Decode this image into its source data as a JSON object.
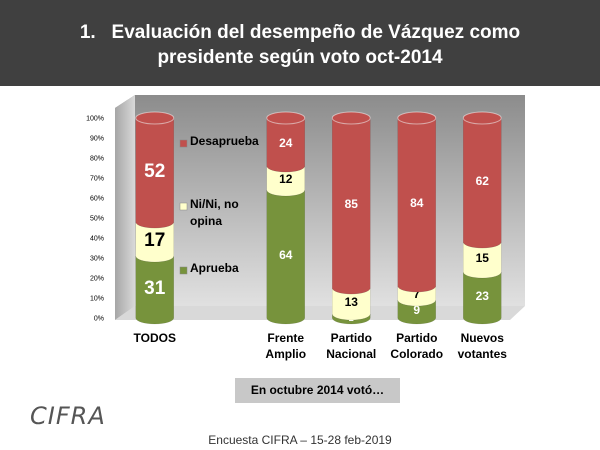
{
  "chart_data": {
    "type": "bar3d_stacked_percent",
    "title": "1.   Evaluación del desempeño de Vázquez como presidente según voto oct-2014",
    "categories": [
      "TODOS",
      null,
      "Frente Amplio",
      "Partido Nacional",
      "Partido Colorado",
      "Nuevos votantes"
    ],
    "series": [
      {
        "name": "Aprueba",
        "color": "#77933c",
        "values": [
          31,
          null,
          64,
          2,
          9,
          23
        ]
      },
      {
        "name": "Ni/Ni, no opina",
        "color": "#ffffcc",
        "values": [
          17,
          null,
          12,
          13,
          7,
          15
        ]
      },
      {
        "name": "Desaprueba",
        "color": "#c0504d",
        "values": [
          52,
          null,
          24,
          85,
          84,
          62
        ]
      }
    ],
    "ylim": [
      0,
      100
    ],
    "yticks": [
      {
        "value": 0,
        "label": "0%"
      },
      {
        "value": 10,
        "label": "10%"
      },
      {
        "value": 20,
        "label": "20%"
      },
      {
        "value": 30,
        "label": "30%"
      },
      {
        "value": 40,
        "label": "40%"
      },
      {
        "value": 50,
        "label": "50%"
      },
      {
        "value": 60,
        "label": "60%"
      },
      {
        "value": 70,
        "label": "70%"
      },
      {
        "value": 80,
        "label": "80%"
      },
      {
        "value": 90,
        "label": "90%"
      },
      {
        "value": 100,
        "label": "100%"
      }
    ],
    "group_label": "En octubre 2014 votó…",
    "source": "Encuesta CIFRA – 15-28 feb-2019",
    "logo": "CIFRA"
  }
}
